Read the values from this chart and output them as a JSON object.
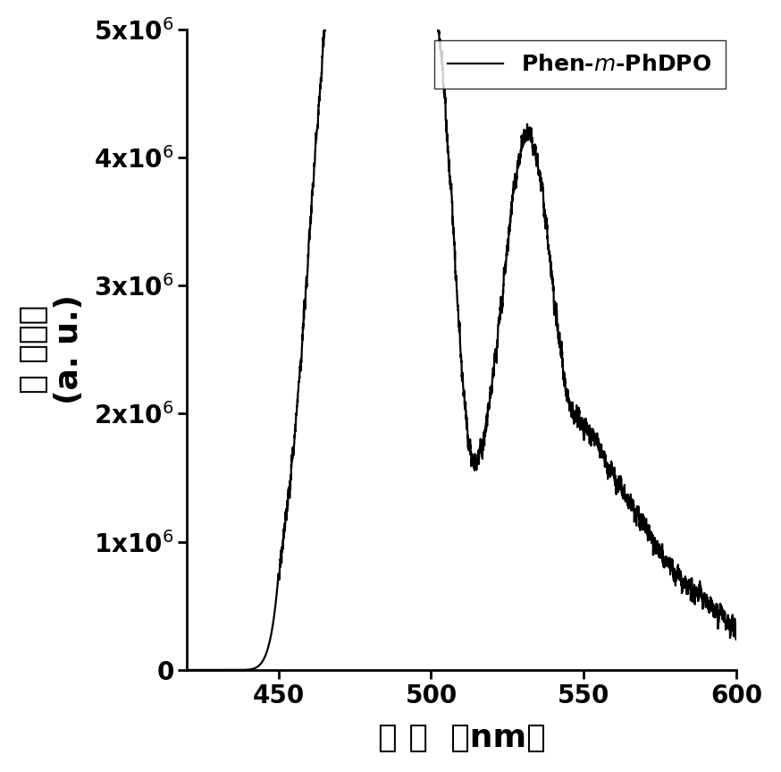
{
  "xmin": 420,
  "xmax": 600,
  "ymin": 0,
  "ymax": 5000000.0,
  "xticks": [
    450,
    500,
    550,
    600
  ],
  "ytick_values": [
    0,
    1000000.0,
    2000000.0,
    3000000.0,
    4000000.0,
    5000000.0
  ],
  "ytick_labels": [
    "0",
    "1x10$^{6}$",
    "2x10$^{6}$",
    "3x10$^{6}$",
    "4x10$^{6}$",
    "5x10$^{6}$"
  ],
  "line_color": "#000000",
  "line_width": 1.6,
  "background_color": "#ffffff",
  "label_fontsize": 26,
  "tick_fontsize": 20,
  "legend_fontsize": 18,
  "ylabel_chinese": "发 光强度",
  "ylabel_unit": "(a. u.)",
  "xlabel_chinese": "波 长",
  "xlabel_unit": "（nm）"
}
